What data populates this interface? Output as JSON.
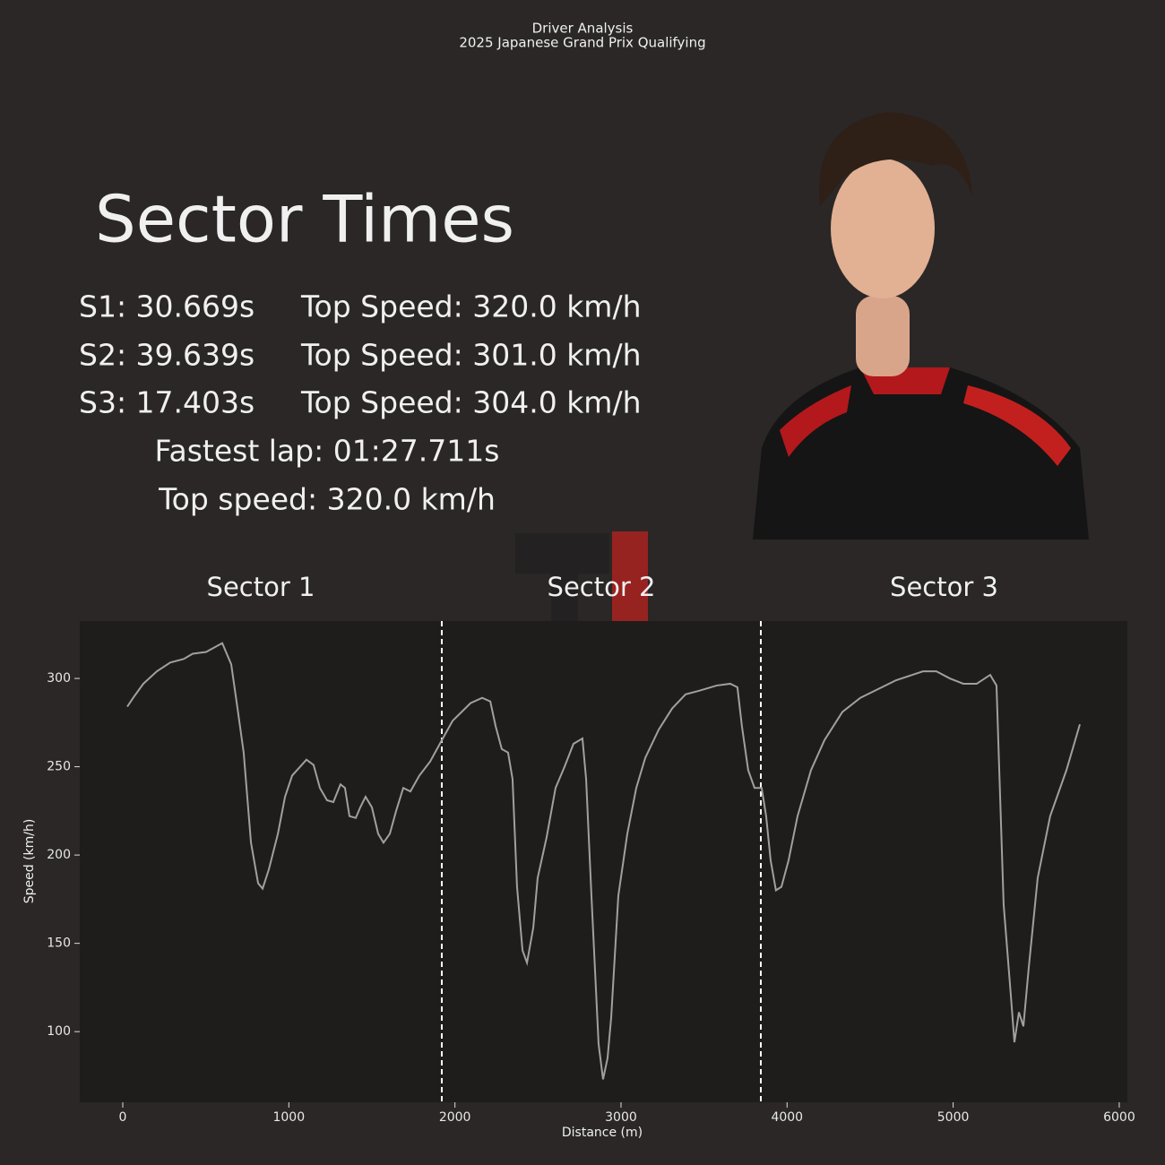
{
  "header": {
    "title": "Driver Analysis",
    "subtitle": "2025 Japanese Grand Prix Qualifying"
  },
  "summary": {
    "heading": "Sector Times",
    "sectors": [
      {
        "time": "S1: 30.669s",
        "top_speed": "Top Speed: 320.0 km/h"
      },
      {
        "time": "S2: 39.639s",
        "top_speed": "Top Speed: 301.0 km/h"
      },
      {
        "time": "S3: 17.403s",
        "top_speed": "Top Speed: 304.0 km/h"
      }
    ],
    "fastest_lap": "Fastest lap: 01:27.711s",
    "top_speed": "Top speed: 320.0 km/h"
  },
  "chart_data": {
    "type": "line",
    "xlabel": "Distance (m)",
    "ylabel": "Speed (km/h)",
    "sector_labels": [
      "Sector 1",
      "Sector 2",
      "Sector 3"
    ],
    "sector_boundaries": [
      1921,
      3842
    ],
    "color": "#a0a0a0",
    "x": [
      27,
      70,
      124,
      205,
      286,
      367,
      421,
      502,
      599,
      653,
      691,
      728,
      772,
      815,
      842,
      880,
      934,
      977,
      1020,
      1068,
      1106,
      1149,
      1187,
      1230,
      1268,
      1311,
      1338,
      1365,
      1403,
      1430,
      1462,
      1500,
      1538,
      1570,
      1608,
      1646,
      1689,
      1732,
      1786,
      1851,
      1921,
      1986,
      2040,
      2094,
      2164,
      2213,
      2245,
      2282,
      2320,
      2347,
      2374,
      2407,
      2434,
      2472,
      2498,
      2552,
      2606,
      2660,
      2714,
      2768,
      2790,
      2822,
      2865,
      2892,
      2919,
      2941,
      2984,
      3038,
      3092,
      3146,
      3227,
      3308,
      3389,
      3470,
      3577,
      3658,
      3701,
      3728,
      3766,
      3804,
      3847,
      3874,
      3901,
      3933,
      3966,
      4009,
      4063,
      4144,
      4225,
      4333,
      4441,
      4549,
      4657,
      4818,
      4899,
      4980,
      5061,
      5142,
      5223,
      5261,
      5304,
      5347,
      5369,
      5396,
      5423,
      5455,
      5509,
      5584,
      5682,
      5763
    ],
    "values": [
      284,
      290,
      297,
      304,
      309,
      311,
      314,
      315,
      320,
      308,
      283,
      258,
      207,
      184,
      181,
      192,
      212,
      233,
      245,
      250,
      254,
      251,
      238,
      231,
      230,
      240,
      238,
      222,
      221,
      227,
      233,
      227,
      212,
      207,
      212,
      225,
      238,
      236,
      245,
      253,
      265,
      276,
      281,
      286,
      289,
      287,
      273,
      260,
      258,
      243,
      182,
      146,
      139,
      159,
      187,
      210,
      238,
      250,
      263,
      266,
      243,
      177,
      93,
      73,
      85,
      108,
      177,
      212,
      238,
      255,
      271,
      283,
      291,
      293,
      296,
      297,
      295,
      273,
      248,
      238,
      238,
      222,
      197,
      180,
      182,
      197,
      222,
      248,
      265,
      281,
      289,
      294,
      299,
      304,
      304,
      300,
      297,
      297,
      302,
      296,
      172,
      121,
      94,
      111,
      103,
      136,
      187,
      222,
      248,
      274
    ],
    "xlim": [
      -259,
      6049
    ],
    "ylim": [
      60,
      332.5
    ],
    "xticks": [
      0,
      1000,
      2000,
      3000,
      4000,
      5000,
      6000
    ],
    "yticks": [
      100,
      150,
      200,
      250,
      300
    ]
  }
}
